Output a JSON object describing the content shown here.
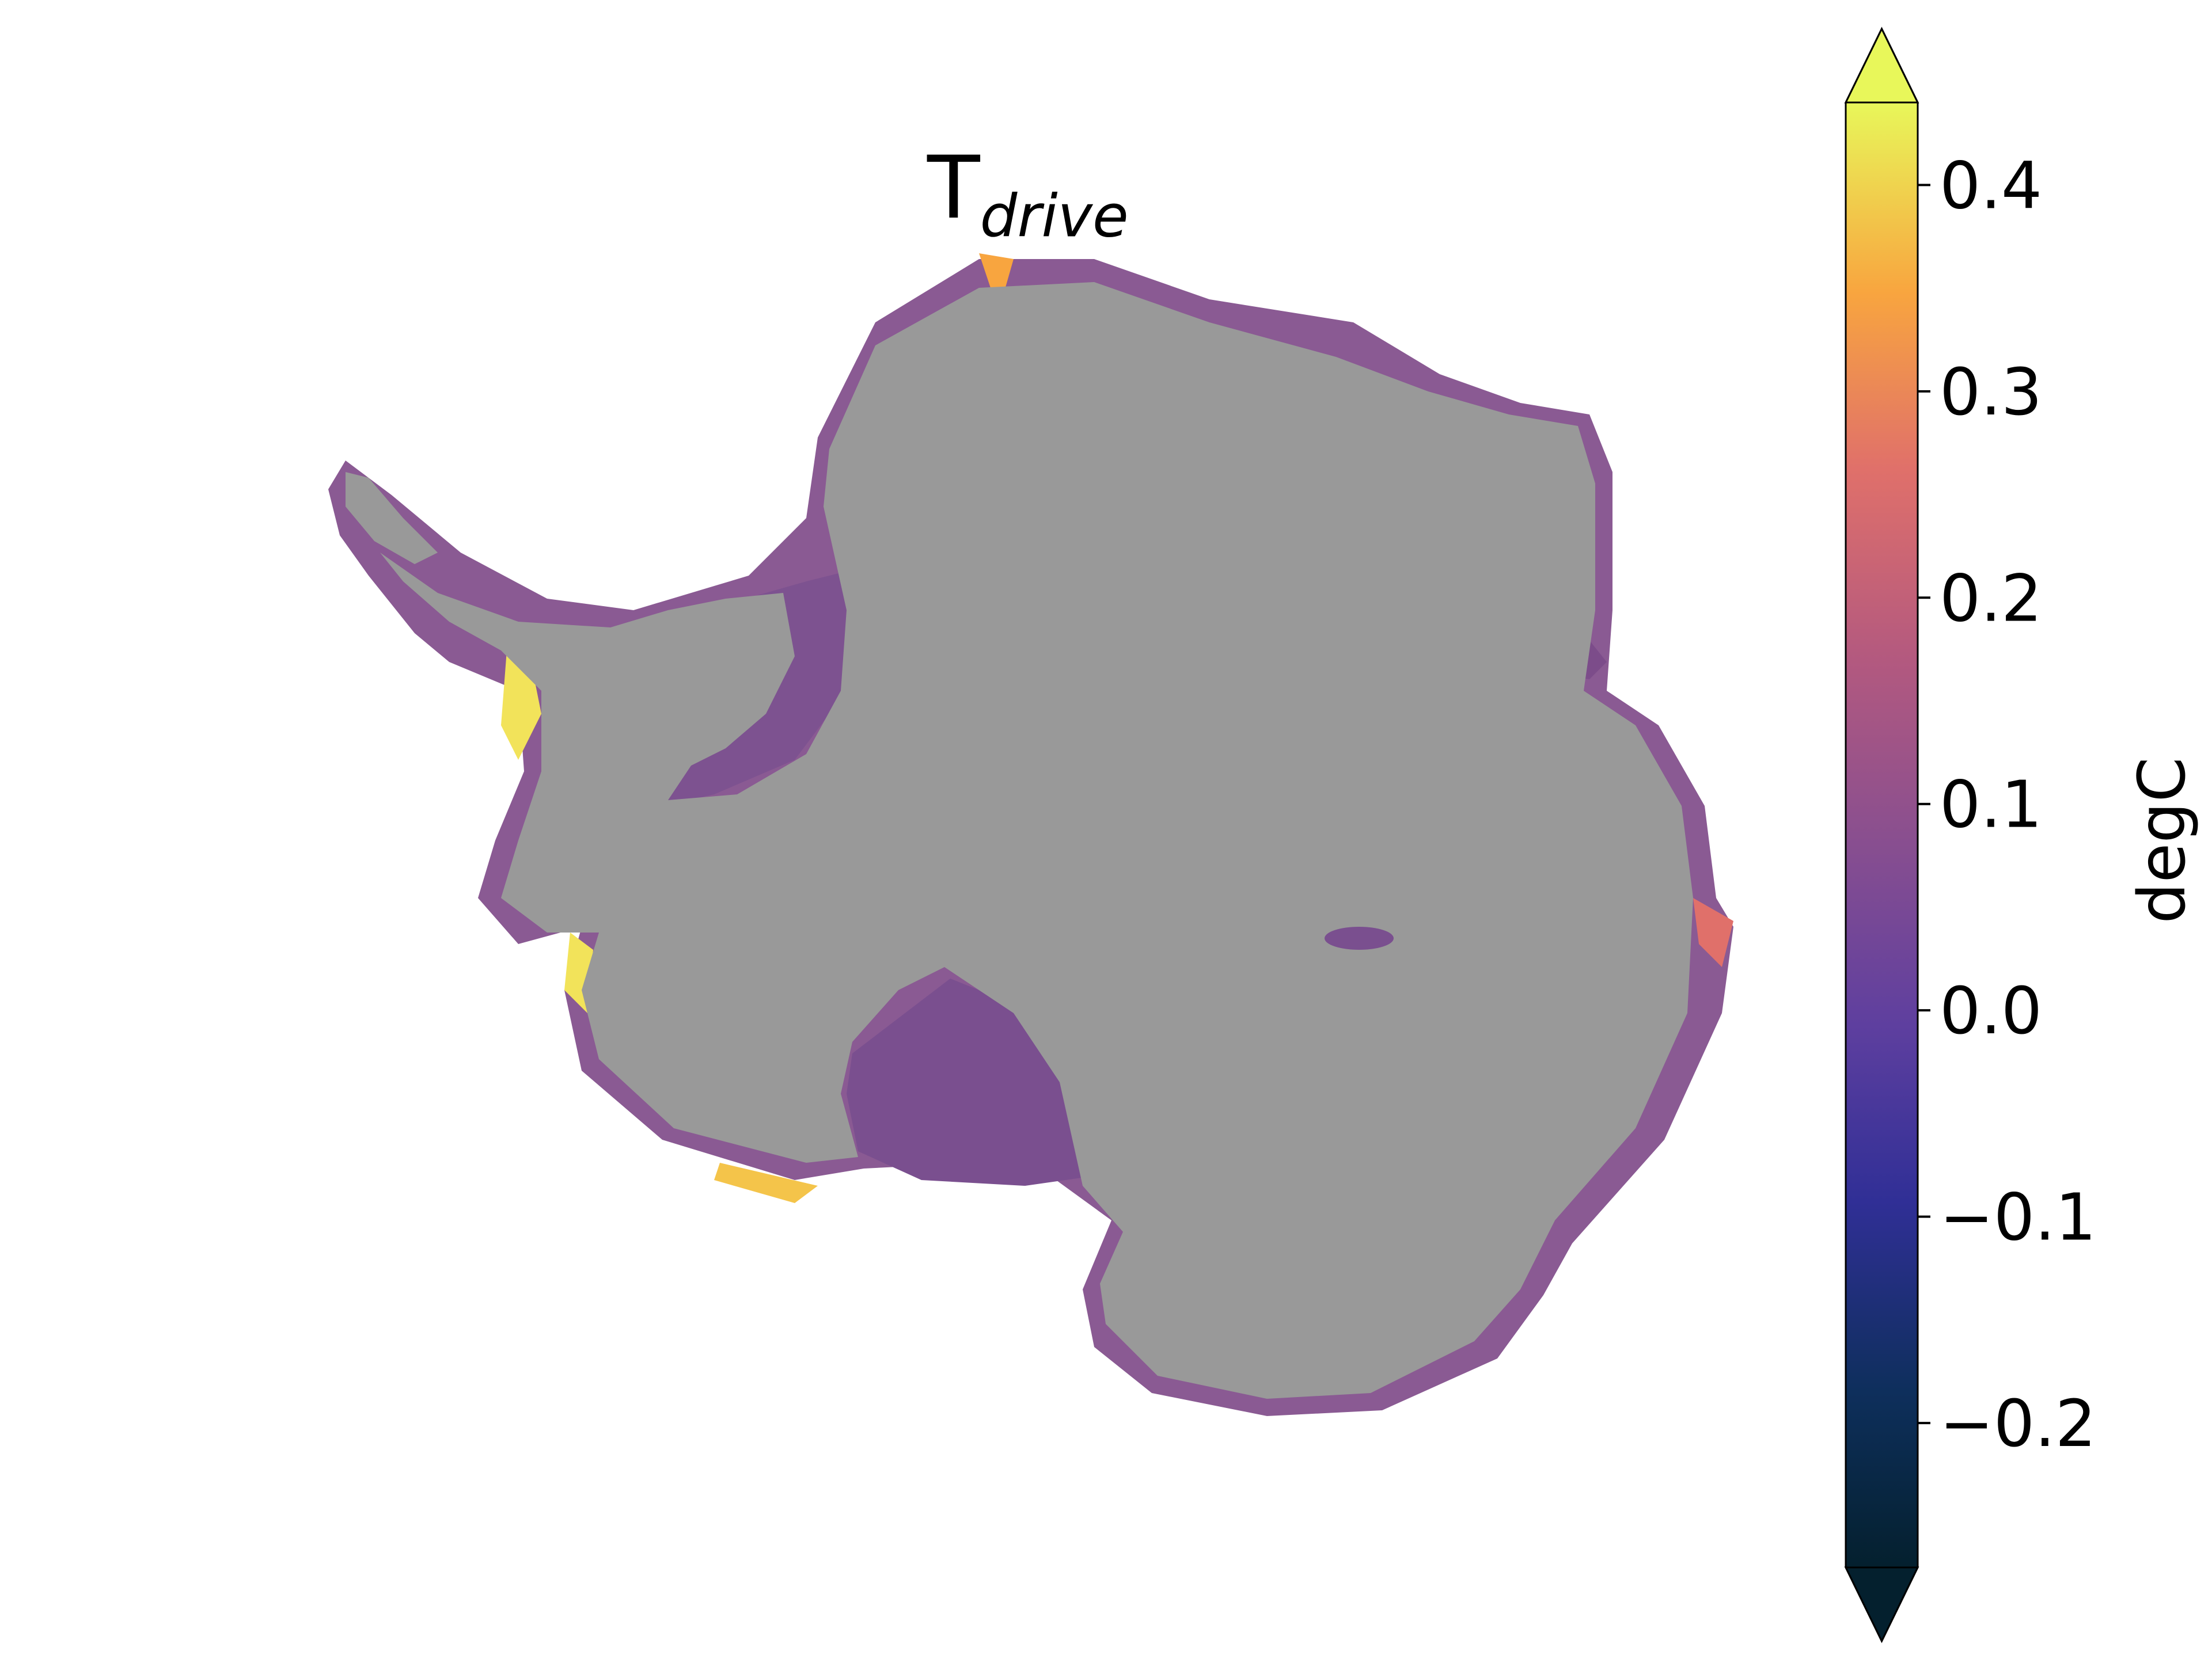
{
  "title": {
    "main": "T",
    "subscript": "drive"
  },
  "colorbar": {
    "label": "degC",
    "ticks": [
      "0.4",
      "0.3",
      "0.2",
      "0.1",
      "0.0",
      "−0.1",
      "−0.2"
    ],
    "tick_values": [
      0.4,
      0.3,
      0.2,
      0.1,
      0.0,
      -0.1,
      -0.2
    ],
    "range": [
      -0.27,
      0.44
    ],
    "extend": "both",
    "colormap": "thermal"
  },
  "colors": {
    "land_ice": "#999999",
    "background": "#ffffff",
    "ice_shelf_typical": "#7a4f8f",
    "warm_edge": "#f2e35a",
    "cold_extreme": "#04202e"
  }
}
